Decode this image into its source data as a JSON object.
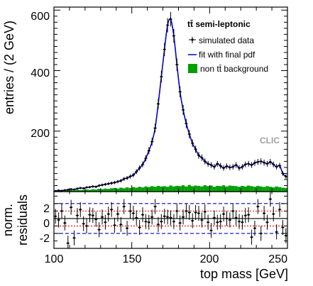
{
  "chart_data": [
    {
      "type": "scatter",
      "title": "",
      "xlabel": "",
      "ylabel": "entries / (2 GeV)",
      "xlim": [
        100,
        250
      ],
      "ylim": [
        0,
        610
      ],
      "yticks": [
        200,
        400,
        600
      ],
      "ytick_labels": [
        "200",
        "400",
        "600"
      ],
      "grid": false,
      "legend_title": "tt̄ semi-leptonic",
      "legend_position": "top-right",
      "annotation": "CLIC",
      "series": [
        {
          "name": "simulated data",
          "kind": "points-with-errorbars",
          "color": "#000000",
          "x": [
            101,
            103,
            105,
            107,
            109,
            111,
            113,
            115,
            117,
            119,
            121,
            123,
            125,
            127,
            129,
            131,
            133,
            135,
            137,
            139,
            141,
            143,
            145,
            147,
            149,
            151,
            153,
            155,
            157,
            159,
            161,
            163,
            165,
            167,
            169,
            171,
            173,
            175,
            177,
            179,
            181,
            183,
            185,
            187,
            189,
            191,
            193,
            195,
            197,
            199,
            201,
            203,
            205,
            207,
            209,
            211,
            213,
            215,
            217,
            219,
            221,
            223,
            225,
            227,
            229,
            231,
            233,
            235,
            237,
            239,
            241,
            243,
            245,
            247,
            249
          ],
          "y": [
            2,
            4,
            3,
            5,
            6,
            8,
            7,
            10,
            12,
            11,
            14,
            15,
            17,
            16,
            20,
            22,
            24,
            26,
            28,
            30,
            33,
            36,
            42,
            45,
            50,
            55,
            66,
            78,
            90,
            110,
            135,
            165,
            210,
            290,
            380,
            470,
            550,
            570,
            515,
            420,
            330,
            270,
            225,
            190,
            160,
            140,
            120,
            112,
            100,
            92,
            88,
            82,
            92,
            85,
            78,
            84,
            80,
            82,
            88,
            78,
            82,
            90,
            92,
            88,
            95,
            98,
            100,
            96,
            92,
            98,
            90,
            82,
            86,
            60,
            50
          ]
        },
        {
          "name": "fit with final pdf",
          "kind": "line",
          "color": "#0000cc"
        },
        {
          "name": "non tt̄ background",
          "kind": "histogram",
          "color": "#00a000",
          "x": [
            101,
            103,
            105,
            107,
            109,
            111,
            113,
            115,
            117,
            119,
            121,
            123,
            125,
            127,
            129,
            131,
            133,
            135,
            137,
            139,
            141,
            143,
            145,
            147,
            149,
            151,
            153,
            155,
            157,
            159,
            161,
            163,
            165,
            167,
            169,
            171,
            173,
            175,
            177,
            179,
            181,
            183,
            185,
            187,
            189,
            191,
            193,
            195,
            197,
            199,
            201,
            203,
            205,
            207,
            209,
            211,
            213,
            215,
            217,
            219,
            221,
            223,
            225,
            227,
            229,
            231,
            233,
            235,
            237,
            239,
            241,
            243,
            245,
            247,
            249
          ],
          "y": [
            2,
            3,
            2,
            4,
            3,
            5,
            4,
            6,
            5,
            6,
            7,
            6,
            8,
            7,
            9,
            8,
            10,
            9,
            11,
            12,
            10,
            13,
            11,
            14,
            12,
            15,
            13,
            16,
            14,
            17,
            15,
            18,
            16,
            19,
            17,
            18,
            16,
            20,
            17,
            19,
            18,
            21,
            17,
            22,
            18,
            20,
            19,
            17,
            21,
            18,
            20,
            16,
            19,
            18,
            21,
            17,
            20,
            19,
            18,
            16,
            19,
            17,
            20,
            18,
            16,
            19,
            17,
            15,
            18,
            16,
            14,
            17,
            15,
            13,
            12
          ]
        }
      ]
    },
    {
      "type": "scatter",
      "title": "",
      "xlabel": "top mass [GeV]",
      "ylabel": "norm. residuals",
      "xlim": [
        100,
        250
      ],
      "ylim": [
        -4,
        3.6
      ],
      "xticks": [
        100,
        150,
        200,
        250
      ],
      "xtick_labels": [
        "100",
        "150",
        "200",
        "250"
      ],
      "yticks": [
        -2,
        0,
        2
      ],
      "ytick_labels": [
        "-2",
        "0",
        "2"
      ],
      "grid": false,
      "reference_lines": [
        {
          "y": 0,
          "color": "#000000",
          "style": "solid"
        },
        {
          "y": 1,
          "color": "#ff0000",
          "style": "dotted"
        },
        {
          "y": -1,
          "color": "#ff0000",
          "style": "dotted"
        },
        {
          "y": 2,
          "color": "#0000cc",
          "style": "dashed"
        },
        {
          "y": -2,
          "color": "#0000cc",
          "style": "dashed"
        }
      ],
      "series": [
        {
          "name": "",
          "kind": "points-with-errorbars",
          "color": "#000000",
          "x": [
            101,
            103,
            105,
            107,
            109,
            111,
            113,
            115,
            117,
            119,
            121,
            123,
            125,
            127,
            129,
            131,
            133,
            135,
            137,
            139,
            141,
            143,
            145,
            147,
            149,
            151,
            153,
            155,
            157,
            159,
            161,
            163,
            165,
            167,
            169,
            171,
            173,
            175,
            177,
            179,
            181,
            183,
            185,
            187,
            189,
            191,
            193,
            195,
            197,
            199,
            201,
            203,
            205,
            207,
            209,
            211,
            213,
            215,
            217,
            219,
            221,
            223,
            225,
            227,
            229,
            231,
            233,
            235,
            237,
            239,
            241,
            243,
            245,
            247,
            249
          ],
          "y": [
            0.3,
            -0.2,
            1.0,
            -0.6,
            -3.3,
            1.5,
            -2.6,
            0.4,
            1.2,
            -0.7,
            -1.0,
            0.5,
            0.4,
            -0.1,
            -1.5,
            0.2,
            -0.5,
            0.6,
            1.2,
            -0.9,
            0.6,
            -0.8,
            1.6,
            -1.3,
            1.0,
            0.7,
            0.1,
            -1.2,
            0.5,
            -0.4,
            -0.5,
            0.2,
            1.6,
            -0.8,
            -0.4,
            0.3,
            0.2,
            0.1,
            -0.4,
            1.0,
            -0.6,
            0.2,
            1.0,
            0.8,
            -0.3,
            0.8,
            0.7,
            -0.2,
            0.9,
            -0.5,
            -1.6,
            0.1,
            -0.5,
            -0.4,
            0.6,
            0.0,
            -0.2,
            1.0,
            0.1,
            -0.4,
            -0.5,
            0.4,
            0.5,
            -2.5,
            -1.3,
            1.6,
            -2.0,
            0.7,
            -0.5,
            2.6,
            0.6,
            -1.8,
            1.2,
            -1.2,
            -2.3
          ]
        }
      ]
    }
  ]
}
